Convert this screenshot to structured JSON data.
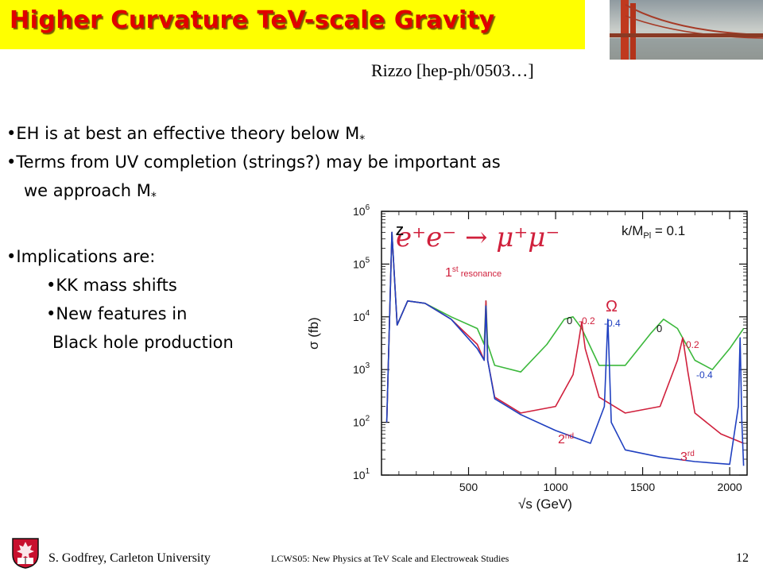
{
  "slide": {
    "title": "Higher Curvature TeV-scale Gravity",
    "citation": "Rizzo [hep-ph/0503…]",
    "bullets": [
      "•EH is at best an effective theory below M*",
      "•Terms from UV completion (strings?) may be important as",
      "we approach M*",
      "•Implications are:",
      "•KK mass shifts",
      "•New features in",
      "Black hole production"
    ],
    "photo_icon": "bridge-photo",
    "logo_icon": "carleton-university-crest"
  },
  "figure": {
    "process": "e⁺e⁻ → μ⁺μ⁻",
    "coupling": "k/M",
    "coupling_sub": "Pl",
    "coupling_val": " = 0.1",
    "annotations": {
      "z": "Z",
      "first": "1",
      "first_sup": "st",
      "first_rest": " resonance",
      "second": "2",
      "second_sup": "nd",
      "third": "3",
      "third_sup": "rd",
      "omega": "Ω",
      "labels_r1": [
        "0",
        "-0.2",
        "-0.4"
      ],
      "labels_r2": [
        "0",
        "-0.2",
        "-0.4"
      ]
    },
    "ylabel": "σ (fb)",
    "xlabel": "√s  (GeV)",
    "y_ticks": [
      "10",
      "10",
      "10",
      "10",
      "10",
      "10"
    ],
    "y_exps": [
      "1",
      "2",
      "3",
      "4",
      "5",
      "6"
    ],
    "x_ticks": [
      "500",
      "1000",
      "1500",
      "2000"
    ]
  },
  "chart_data": {
    "type": "line",
    "xlabel": "√s  (GeV)",
    "ylabel": "σ (fb)",
    "xlim": [
      0,
      2100
    ],
    "ylim": [
      10,
      1000000
    ],
    "yscale": "log",
    "series": [
      {
        "color": "#3cb83c",
        "x": [
          30,
          60,
          90,
          150,
          250,
          400,
          550,
          590,
          600,
          610,
          650,
          800,
          950,
          1050,
          1100,
          1150,
          1250,
          1400,
          1550,
          1620,
          1700,
          1800,
          1900,
          2000,
          2080
        ],
        "y": [
          100,
          400000,
          7000,
          20000,
          18000,
          10000,
          6000,
          3000,
          20000,
          3000,
          1200,
          900,
          3000,
          9000,
          10000,
          6000,
          1200,
          1200,
          5000,
          9000,
          6000,
          1500,
          1000,
          2500,
          6000
        ]
      },
      {
        "color": "#d0203c",
        "x": [
          30,
          60,
          90,
          150,
          250,
          400,
          550,
          590,
          600,
          610,
          650,
          800,
          1000,
          1100,
          1130,
          1150,
          1170,
          1250,
          1400,
          1600,
          1700,
          1730,
          1760,
          1800,
          1950,
          2080
        ],
        "y": [
          100,
          400000,
          7000,
          20000,
          18000,
          9000,
          3000,
          1500,
          20000,
          1500,
          300,
          150,
          200,
          800,
          3000,
          8000,
          2500,
          300,
          150,
          200,
          1500,
          4000,
          900,
          150,
          60,
          40
        ]
      },
      {
        "color": "#2040c0",
        "x": [
          30,
          60,
          90,
          150,
          250,
          400,
          550,
          590,
          600,
          610,
          650,
          800,
          1000,
          1200,
          1280,
          1300,
          1320,
          1400,
          1600,
          1800,
          2000,
          2050,
          2060,
          2070,
          2080
        ],
        "y": [
          100,
          400000,
          7000,
          20000,
          18000,
          9000,
          2500,
          1500,
          16000,
          1500,
          280,
          140,
          70,
          40,
          200,
          9000,
          100,
          30,
          22,
          18,
          16,
          200,
          4000,
          100,
          15
        ]
      }
    ]
  }
}
